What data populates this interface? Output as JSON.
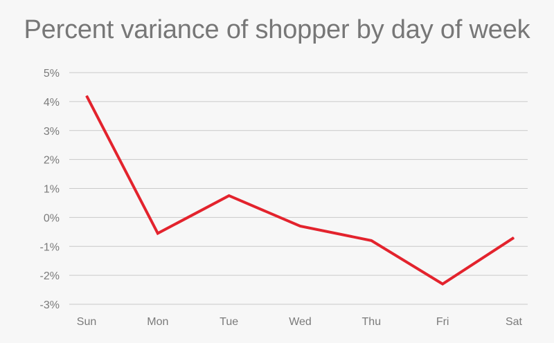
{
  "chart_data": {
    "type": "line",
    "title": "Percent variance of shopper by day of week",
    "xlabel": "",
    "ylabel": "",
    "categories": [
      "Sun",
      "Mon",
      "Tue",
      "Wed",
      "Thu",
      "Fri",
      "Sat"
    ],
    "series": [
      {
        "values": [
          4.2,
          -0.55,
          0.75,
          -0.3,
          -0.8,
          -2.3,
          -0.7
        ],
        "color": "#e3232d"
      }
    ],
    "ylim": [
      -3,
      5
    ],
    "yticks": [
      5,
      4,
      3,
      2,
      1,
      0,
      -1,
      -2,
      -3
    ],
    "ytick_labels": [
      "5%",
      "4%",
      "3%",
      "2%",
      "1%",
      "0%",
      "-1%",
      "-2%",
      "-3%"
    ],
    "grid": true,
    "legend": "none"
  }
}
